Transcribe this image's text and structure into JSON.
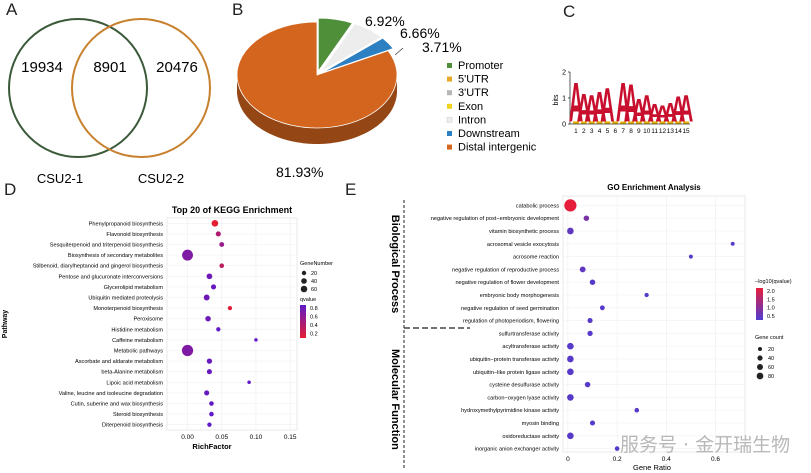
{
  "panel_labels": {
    "a": "A",
    "b": "B",
    "c": "C",
    "d": "D",
    "e": "E"
  },
  "watermark": "服务号 · 金开瑞生物",
  "chart_data": [
    {
      "panel": "A",
      "type": "venn",
      "sets": [
        {
          "name": "CSU2-1",
          "only": "19934",
          "color": "#3a5a3a"
        },
        {
          "name": "CSU2-2",
          "only": "20476",
          "color": "#c8812e"
        }
      ],
      "overlap": "8901"
    },
    {
      "panel": "B",
      "type": "pie",
      "slices": [
        {
          "name": "Promoter",
          "value": 6.92,
          "label": "6.92%",
          "color": "#4f8f3a"
        },
        {
          "name": "5'UTR",
          "value": 0.0,
          "label": "",
          "color": "#e8a92b"
        },
        {
          "name": "3'UTR",
          "value": 0.0,
          "label": "",
          "color": "#b7b7b7"
        },
        {
          "name": "Exon",
          "value": 0.0,
          "label": "",
          "color": "#f2d31c"
        },
        {
          "name": "Intron",
          "value": 6.66,
          "label": "6.66%",
          "color": "#ededed"
        },
        {
          "name": "Downstream",
          "value": 3.71,
          "label": "3.71%",
          "color": "#2c7fc1"
        },
        {
          "name": "Distal intergenic",
          "value": 81.93,
          "label": "81.93%",
          "color": "#d4651e"
        }
      ]
    },
    {
      "panel": "C",
      "type": "sequence-logo",
      "ylabel": "bits",
      "yticks": [
        "0",
        "1",
        "2"
      ],
      "positions": [
        "1",
        "2",
        "3",
        "4",
        "5",
        "6",
        "7",
        "8",
        "9",
        "10",
        "11",
        "12",
        "13",
        "14",
        "15"
      ],
      "letter": "A",
      "heights": [
        1.55,
        1.1,
        1.05,
        1.2,
        1.35,
        0.08,
        1.55,
        1.5,
        0.9,
        1.05,
        0.7,
        0.65,
        0.75,
        1.0,
        1.05
      ],
      "colors": {
        "A": "#c8102e",
        "C": "#2b6cb0",
        "G": "#e0b000",
        "T": "#2e8b57"
      }
    },
    {
      "panel": "D",
      "type": "scatter",
      "title": "Top 20 of KEGG Enrichment",
      "xlabel": "RichFactor",
      "ylabel": "Pathway",
      "xlim": [
        -0.03,
        0.16
      ],
      "xticks": [
        "0.00",
        "0.05",
        "0.10",
        "0.15"
      ],
      "xtick_values": [
        0.0,
        0.05,
        0.1,
        0.15
      ],
      "size_legend_title": "GeneNumber",
      "size_legend": [
        "20",
        "40",
        "60"
      ],
      "color_legend_title": "qvalue",
      "color_legend": [
        "0.8",
        "0.6",
        "0.4",
        "0.2"
      ],
      "points": [
        {
          "pathway": "Phenylpropanoid biosynthesis",
          "x": 0.04,
          "genes": 15,
          "q": 0.05
        },
        {
          "pathway": "Flavonoid biosynthesis",
          "x": 0.045,
          "genes": 6,
          "q": 0.4
        },
        {
          "pathway": "Sesquiterpenoid and triterpenoid biosynthesis",
          "x": 0.05,
          "genes": 5,
          "q": 0.55
        },
        {
          "pathway": "Biosynthesis of secondary metabolites",
          "x": 0.0,
          "genes": 60,
          "q": 0.7
        },
        {
          "pathway": "Stilbenoid, diarylheptanoid and gingerol biosynthesis",
          "x": 0.05,
          "genes": 4,
          "q": 0.3
        },
        {
          "pathway": "Pentose and glucuronate interconversions",
          "x": 0.032,
          "genes": 9,
          "q": 0.8
        },
        {
          "pathway": "Glycerolipid metabolism",
          "x": 0.038,
          "genes": 6,
          "q": 0.85
        },
        {
          "pathway": "Ubiquitin mediated proteolysis",
          "x": 0.028,
          "genes": 10,
          "q": 0.8
        },
        {
          "pathway": "Monoterpenoid biosynthesis",
          "x": 0.062,
          "genes": 3,
          "q": 0.1
        },
        {
          "pathway": "Peroxisome",
          "x": 0.03,
          "genes": 8,
          "q": 0.8
        },
        {
          "pathway": "Histidine metabolism",
          "x": 0.045,
          "genes": 3,
          "q": 0.9
        },
        {
          "pathway": "Caffeine metabolism",
          "x": 0.1,
          "genes": 1,
          "q": 0.9
        },
        {
          "pathway": "Metabolic pathways",
          "x": 0.0,
          "genes": 65,
          "q": 0.7
        },
        {
          "pathway": "Ascorbate and aldarate metabolism",
          "x": 0.032,
          "genes": 7,
          "q": 0.85
        },
        {
          "pathway": "beta-Alanine metabolism",
          "x": 0.032,
          "genes": 6,
          "q": 0.85
        },
        {
          "pathway": "Lipoic acid metabolism",
          "x": 0.09,
          "genes": 1,
          "q": 0.9
        },
        {
          "pathway": "Valine, leucine and isoleucine degradation",
          "x": 0.028,
          "genes": 6,
          "q": 0.85
        },
        {
          "pathway": "Cutin, suberine and wax biosynthesis",
          "x": 0.035,
          "genes": 4,
          "q": 0.9
        },
        {
          "pathway": "Steroid biosynthesis",
          "x": 0.035,
          "genes": 4,
          "q": 0.9
        },
        {
          "pathway": "Diterpenoid biosynthesis",
          "x": 0.032,
          "genes": 3,
          "q": 0.9
        }
      ]
    },
    {
      "panel": "E",
      "type": "scatter",
      "title": "GO Enrichment Analysis",
      "xlabel": "Gene Ratio",
      "xlim": [
        -0.02,
        0.72
      ],
      "xticks": [
        "0",
        "0.2",
        "0.4",
        "0.6"
      ],
      "xtick_values": [
        0,
        0.2,
        0.4,
        0.6
      ],
      "groups": [
        {
          "name": "Biological Process",
          "start": 0,
          "end": 10
        },
        {
          "name": "Molecular Function",
          "start": 10,
          "end": 21
        }
      ],
      "color_legend_title": "−log10(qvalue)",
      "color_legend": [
        "2.0",
        "1.5",
        "1.0",
        "0.5"
      ],
      "size_legend_title": "Gene count",
      "size_legend": [
        "20",
        "40",
        "60",
        "80"
      ],
      "points": [
        {
          "term": "catabolic process",
          "x": 0.01,
          "count": 80,
          "q": 2.3
        },
        {
          "term": "negative regulation of post−embryonic development",
          "x": 0.075,
          "count": 8,
          "q": 1.0
        },
        {
          "term": "vitamin biosynthetic process",
          "x": 0.01,
          "count": 15,
          "q": 0.7
        },
        {
          "term": "acrosomal vesicle exocytosis",
          "x": 0.67,
          "count": 2,
          "q": 0.6
        },
        {
          "term": "acrosome reaction",
          "x": 0.5,
          "count": 2,
          "q": 0.6
        },
        {
          "term": "negative regulation of reproductive process",
          "x": 0.06,
          "count": 10,
          "q": 0.7
        },
        {
          "term": "negative regulation of flower development",
          "x": 0.1,
          "count": 8,
          "q": 0.6
        },
        {
          "term": "embryonic body morphogenesis",
          "x": 0.32,
          "count": 3,
          "q": 0.6
        },
        {
          "term": "negative regulation of seed germination",
          "x": 0.14,
          "count": 5,
          "q": 0.6
        },
        {
          "term": "regulation of photoperiodism, flowering",
          "x": 0.09,
          "count": 6,
          "q": 0.6
        },
        {
          "term": "sulfurtransferase activity",
          "x": 0.09,
          "count": 7,
          "q": 0.6
        },
        {
          "term": "acyltransferase activity",
          "x": 0.01,
          "count": 15,
          "q": 0.6
        },
        {
          "term": "ubiquitin−protein transferase activity",
          "x": 0.01,
          "count": 15,
          "q": 0.6
        },
        {
          "term": "ubiquitin−like protein ligase activity",
          "x": 0.01,
          "count": 15,
          "q": 0.6
        },
        {
          "term": "cysteine desulfurase activity",
          "x": 0.08,
          "count": 8,
          "q": 0.6
        },
        {
          "term": "carbon−oxygen lyase activity",
          "x": 0.01,
          "count": 15,
          "q": 0.6
        },
        {
          "term": "hydroxymethylpyrimidine kinase activity",
          "x": 0.28,
          "count": 4,
          "q": 0.6
        },
        {
          "term": "myosin binding",
          "x": 0.1,
          "count": 6,
          "q": 0.6
        },
        {
          "term": "oxidoreductase activity",
          "x": 0.01,
          "count": 15,
          "q": 0.6
        },
        {
          "term": "inorganic anion exchanger activity",
          "x": 0.2,
          "count": 4,
          "q": 0.6
        }
      ]
    }
  ]
}
